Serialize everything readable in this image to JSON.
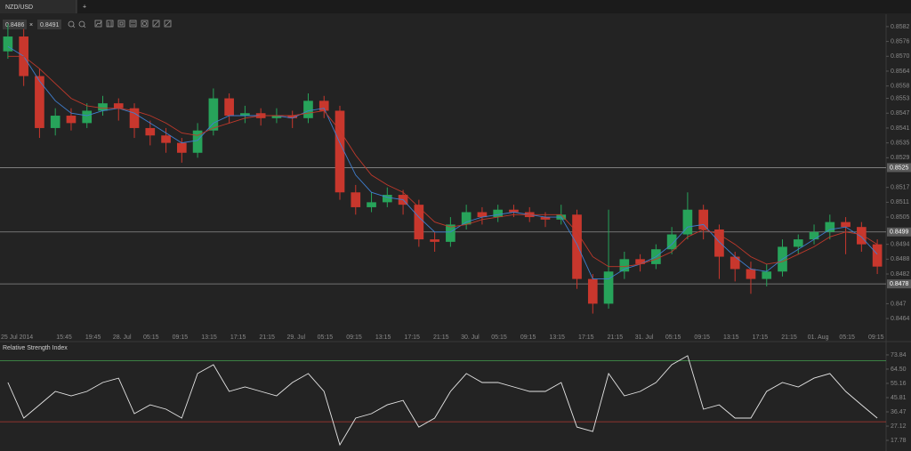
{
  "tab": {
    "label": "NZD/USD",
    "add": "+"
  },
  "toolbar": {
    "bid": 0.8486,
    "separator": "×",
    "ask": 0.8491
  },
  "x_labels": [
    "25 Jul 2014",
    "15:45",
    "19:45",
    "28. Jul",
    "05:15",
    "09:15",
    "13:15",
    "17:15",
    "21:15",
    "29. Jul",
    "05:15",
    "09:15",
    "13:15",
    "17:15",
    "21:15",
    "30. Jul",
    "05:15",
    "09:15",
    "13:15",
    "17:15",
    "21:15",
    "31. Jul",
    "05:15",
    "09:15",
    "13:15",
    "17:15",
    "21:15",
    "01. Aug",
    "05:15",
    "09:15"
  ],
  "chart_data": [
    {
      "type": "candlestick",
      "up_color": "#27a35a",
      "down_color": "#c8372d",
      "ylim": [
        0.8459,
        0.8587
      ],
      "yticks": [
        0.8582,
        0.8576,
        {
          "value": 0.857,
          "label": "0.8570"
        },
        0.8564,
        0.8558,
        0.8553,
        0.8547,
        0.8541,
        0.8535,
        0.8529,
        0.8517,
        0.8511,
        0.8505,
        0.8494,
        0.8488,
        0.8482,
        0.847,
        0.8464
      ],
      "levels": [
        0.8525,
        0.8499,
        0.8478
      ],
      "level_color": "#8c8c8c",
      "candles": {
        "open": [
          0.8572,
          0.8578,
          0.8562,
          0.8541,
          0.8546,
          0.8543,
          0.8548,
          0.8551,
          0.8549,
          0.8541,
          0.8538,
          0.8535,
          0.8531,
          0.854,
          0.8553,
          0.8546,
          0.8547,
          0.8545,
          0.8546,
          0.8545,
          0.8552,
          0.8548,
          0.8515,
          0.8509,
          0.8511,
          0.8514,
          0.851,
          0.8496,
          0.8495,
          0.8502,
          0.8507,
          0.8505,
          0.8508,
          0.8507,
          0.8505,
          0.8504,
          0.8506,
          0.848,
          0.847,
          0.8483,
          0.8488,
          0.8486,
          0.8492,
          0.8498,
          0.8508,
          0.85,
          0.8489,
          0.8484,
          0.848,
          0.8483,
          0.8493,
          0.8496,
          0.8499,
          0.8503,
          0.8501,
          0.8494
        ],
        "high": [
          0.8583,
          0.8581,
          0.8565,
          0.8549,
          0.8549,
          0.8551,
          0.8554,
          0.8553,
          0.8551,
          0.8544,
          0.8541,
          0.8537,
          0.8543,
          0.8557,
          0.8555,
          0.855,
          0.8549,
          0.8549,
          0.8548,
          0.8555,
          0.8554,
          0.855,
          0.8518,
          0.8515,
          0.8517,
          0.8516,
          0.8512,
          0.8499,
          0.8505,
          0.851,
          0.8509,
          0.851,
          0.851,
          0.8509,
          0.8507,
          0.851,
          0.8508,
          0.8482,
          0.8508,
          0.8491,
          0.849,
          0.8494,
          0.8501,
          0.8515,
          0.851,
          0.8502,
          0.8491,
          0.8487,
          0.8486,
          0.8496,
          0.8498,
          0.8502,
          0.8506,
          0.8505,
          0.8503,
          0.8496
        ],
        "low": [
          0.8569,
          0.8558,
          0.8537,
          0.8538,
          0.854,
          0.8541,
          0.8546,
          0.8544,
          0.8537,
          0.8534,
          0.8531,
          0.8527,
          0.8529,
          0.8538,
          0.8543,
          0.8543,
          0.8542,
          0.8543,
          0.8541,
          0.8543,
          0.8545,
          0.8512,
          0.8506,
          0.8507,
          0.8509,
          0.8506,
          0.8493,
          0.8491,
          0.8493,
          0.85,
          0.8502,
          0.8503,
          0.8505,
          0.8503,
          0.8501,
          0.8502,
          0.8476,
          0.8466,
          0.8468,
          0.848,
          0.8483,
          0.8484,
          0.849,
          0.8496,
          0.8496,
          0.848,
          0.8479,
          0.8474,
          0.8477,
          0.8481,
          0.849,
          0.8494,
          0.8496,
          0.849,
          0.8491,
          0.8482
        ],
        "close": [
          0.8578,
          0.8562,
          0.8541,
          0.8546,
          0.8543,
          0.8548,
          0.8551,
          0.8549,
          0.8541,
          0.8538,
          0.8535,
          0.8531,
          0.854,
          0.8553,
          0.8546,
          0.8547,
          0.8545,
          0.8546,
          0.8545,
          0.8552,
          0.8548,
          0.8515,
          0.8509,
          0.8511,
          0.8514,
          0.851,
          0.8496,
          0.8495,
          0.8502,
          0.8507,
          0.8505,
          0.8508,
          0.8507,
          0.8505,
          0.8504,
          0.8506,
          0.848,
          0.847,
          0.8483,
          0.8488,
          0.8486,
          0.8492,
          0.8498,
          0.8508,
          0.85,
          0.8489,
          0.8484,
          0.848,
          0.8483,
          0.8493,
          0.8496,
          0.8499,
          0.8503,
          0.8501,
          0.8494,
          0.8485
        ]
      },
      "series": [
        {
          "color": "#3f7fd0",
          "values": [
            0.8574,
            0.857,
            0.856,
            0.8552,
            0.8547,
            0.8546,
            0.8548,
            0.8549,
            0.8547,
            0.8543,
            0.8539,
            0.8535,
            0.8536,
            0.8543,
            0.8546,
            0.8546,
            0.8546,
            0.8546,
            0.8545,
            0.8548,
            0.8549,
            0.8535,
            0.8522,
            0.8515,
            0.8513,
            0.8512,
            0.8505,
            0.8499,
            0.8499,
            0.8503,
            0.8505,
            0.8506,
            0.8507,
            0.8506,
            0.8505,
            0.8505,
            0.8494,
            0.848,
            0.848,
            0.8484,
            0.8486,
            0.8489,
            0.8494,
            0.8501,
            0.8502,
            0.8495,
            0.8489,
            0.8484,
            0.8483,
            0.8488,
            0.8492,
            0.8496,
            0.85,
            0.8501,
            0.8497,
            0.849
          ]
        },
        {
          "color": "#c0392b",
          "values": [
            0.857,
            0.857,
            0.8565,
            0.8559,
            0.8553,
            0.855,
            0.8549,
            0.8549,
            0.8548,
            0.8546,
            0.8543,
            0.8539,
            0.8538,
            0.8541,
            0.8543,
            0.8545,
            0.8546,
            0.8546,
            0.8546,
            0.8547,
            0.8548,
            0.854,
            0.853,
            0.8522,
            0.8518,
            0.8515,
            0.8509,
            0.8503,
            0.8501,
            0.8502,
            0.8504,
            0.8505,
            0.8506,
            0.8506,
            0.8506,
            0.8506,
            0.8499,
            0.8489,
            0.8485,
            0.8485,
            0.8486,
            0.8488,
            0.8491,
            0.8497,
            0.85,
            0.8498,
            0.8494,
            0.8489,
            0.8486,
            0.8487,
            0.849,
            0.8493,
            0.8497,
            0.8499,
            0.8498,
            0.8494
          ]
        }
      ]
    },
    {
      "type": "line",
      "title": "Relative Strength Index",
      "color": "#e6e6e6",
      "ylim": [
        10.8,
        81.4
      ],
      "yticks": [
        73.84,
        {
          "value": 64.5,
          "label": "64.50"
        },
        55.16,
        45.81,
        36.47,
        27.12,
        17.78
      ],
      "levels": [
        {
          "value": 70,
          "color": "#3f8f4a"
        },
        {
          "value": 30,
          "color": "#b23a30"
        }
      ],
      "values": [
        55.7,
        32.4,
        41.1,
        49.9,
        47.0,
        49.9,
        55.7,
        58.6,
        35.3,
        41.1,
        38.2,
        32.4,
        61.6,
        67.4,
        49.9,
        52.8,
        49.9,
        47.0,
        55.7,
        61.6,
        49.9,
        14.8,
        32.4,
        35.3,
        41.1,
        44.0,
        26.5,
        32.4,
        49.9,
        61.6,
        55.7,
        55.7,
        52.8,
        49.9,
        49.9,
        55.7,
        26.5,
        23.6,
        61.6,
        47.0,
        49.9,
        55.7,
        67.4,
        73.3,
        38.2,
        41.1,
        32.4,
        32.4,
        49.9,
        55.7,
        52.8,
        58.6,
        61.6,
        49.9,
        41.1,
        32.4
      ]
    }
  ]
}
